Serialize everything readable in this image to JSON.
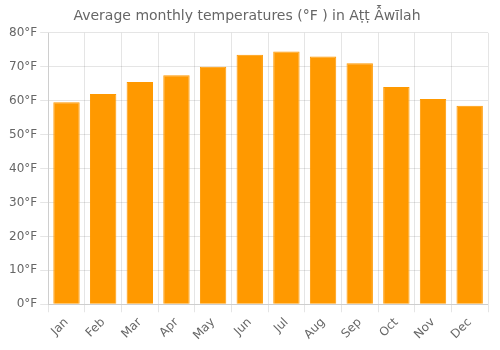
{
  "chart_data": {
    "type": "bar",
    "title": "Average monthly temperatures (°F ) in Aṭṭ Ẫwīlah",
    "categories": [
      "Jan",
      "Feb",
      "Mar",
      "Apr",
      "May",
      "Jun",
      "Jul",
      "Aug",
      "Sep",
      "Oct",
      "Nov",
      "Dec"
    ],
    "values": [
      59.5,
      62.0,
      65.5,
      67.5,
      70.0,
      73.5,
      74.5,
      73.0,
      71.0,
      64.0,
      60.5,
      58.5
    ],
    "color": "#FF9900",
    "ylim": [
      0,
      80
    ],
    "yticks": [
      {
        "value": 0,
        "label": "0°F"
      },
      {
        "value": 10,
        "label": "10°F"
      },
      {
        "value": 20,
        "label": "20°F"
      },
      {
        "value": 30,
        "label": "30°F"
      },
      {
        "value": 40,
        "label": "40°F"
      },
      {
        "value": 50,
        "label": "50°F"
      },
      {
        "value": 60,
        "label": "60°F"
      },
      {
        "value": 70,
        "label": "70°F"
      },
      {
        "value": 80,
        "label": "80°F"
      }
    ],
    "grid": true
  }
}
